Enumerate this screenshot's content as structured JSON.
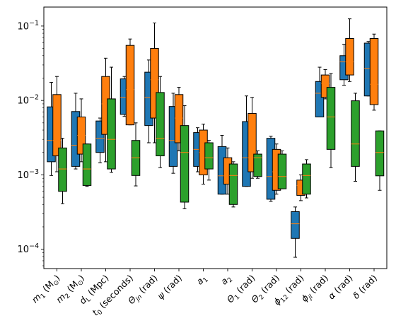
{
  "chart_data": {
    "type": "boxplot",
    "yscale": "log",
    "ylim": [
      5.5e-05,
      0.18
    ],
    "grid": false,
    "y_tick_labels": [
      {
        "value": 0.1,
        "base": "10",
        "exp": "−1"
      },
      {
        "value": 0.01,
        "base": "10",
        "exp": "−2"
      },
      {
        "value": 0.001,
        "base": "10",
        "exp": "−3"
      },
      {
        "value": 0.0001,
        "base": "10",
        "exp": "−4"
      }
    ],
    "categories": [
      {
        "sym": "m",
        "sub": "1",
        "unit": " (M",
        "unit_sub": "⊙",
        "unit_end": ")"
      },
      {
        "sym": "m",
        "sub": "2",
        "unit": " (M",
        "unit_sub": "⊙",
        "unit_end": ")"
      },
      {
        "sym": "d",
        "sub": "L",
        "unit": " (Mpc)",
        "unit_sub": "",
        "unit_end": ""
      },
      {
        "sym": "t",
        "sub": "0",
        "unit": " (seconds)",
        "unit_sub": "",
        "unit_end": ""
      },
      {
        "sym": "Θ",
        "sub": "jn",
        "unit": " (rad)",
        "unit_sub": "",
        "unit_end": ""
      },
      {
        "sym": "ψ",
        "sub": "",
        "unit": " (rad)",
        "unit_sub": "",
        "unit_end": ""
      },
      {
        "sym": "a",
        "sub": "1",
        "unit": "",
        "unit_sub": "",
        "unit_end": ""
      },
      {
        "sym": "a",
        "sub": "2",
        "unit": "",
        "unit_sub": "",
        "unit_end": ""
      },
      {
        "sym": "Θ",
        "sub": "1",
        "unit": " (rad)",
        "unit_sub": "",
        "unit_end": ""
      },
      {
        "sym": "Θ",
        "sub": "2",
        "unit": " (rad)",
        "unit_sub": "",
        "unit_end": ""
      },
      {
        "sym": "ϕ",
        "sub": "12",
        "unit": " (rad)",
        "unit_sub": "",
        "unit_end": ""
      },
      {
        "sym": "ϕ",
        "sub": "jl",
        "unit": " (rad)",
        "unit_sub": "",
        "unit_end": ""
      },
      {
        "sym": "α",
        "sub": "",
        "unit": " (rad)",
        "unit_sub": "",
        "unit_end": ""
      },
      {
        "sym": "δ",
        "sub": "",
        "unit": " (rad)",
        "unit_sub": "",
        "unit_end": ""
      }
    ],
    "series": [
      {
        "color": "#1f77b4",
        "boxes": [
          [
            0.00098,
            0.0015,
            0.0029,
            0.0082,
            0.0175
          ],
          [
            0.0012,
            0.0013,
            0.0025,
            0.0071,
            0.0125
          ],
          [
            0.00145,
            0.002,
            0.0031,
            0.0053,
            0.0058
          ],
          [
            0.0061,
            0.0065,
            0.011,
            0.0195,
            0.021
          ],
          [
            0.0027,
            0.0046,
            0.011,
            0.024,
            0.035
          ],
          [
            0.00105,
            0.0013,
            0.0029,
            0.0083,
            0.0125
          ],
          [
            0.0011,
            0.0013,
            0.0022,
            0.0037,
            0.0043
          ],
          [
            0.00055,
            0.00055,
            0.00097,
            0.0024,
            0.0034
          ],
          [
            0.0007,
            0.0007,
            0.0017,
            0.0052,
            0.0115
          ],
          [
            0.00044,
            0.00047,
            0.00095,
            0.0031,
            0.0033
          ],
          [
            7.8e-05,
            0.00014,
            0.00022,
            0.00032,
            0.00037
          ],
          [
            0.006,
            0.006,
            0.0125,
            0.018,
            0.028
          ],
          [
            0.016,
            0.019,
            0.033,
            0.04,
            0.057
          ],
          [
            0.0115,
            0.0115,
            0.027,
            0.059,
            0.062
          ]
        ]
      },
      {
        "color": "#ff7f0e",
        "boxes": [
          [
            0.0011,
            0.0018,
            0.0029,
            0.012,
            0.021
          ],
          [
            0.0015,
            0.0019,
            0.0034,
            0.006,
            0.0105
          ],
          [
            0.0015,
            0.0035,
            0.009,
            0.021,
            0.037
          ],
          [
            0.0047,
            0.0047,
            0.014,
            0.055,
            0.067
          ],
          [
            0.0027,
            0.0058,
            0.019,
            0.05,
            0.11
          ],
          [
            0.0021,
            0.0027,
            0.0058,
            0.012,
            0.015
          ],
          [
            0.00075,
            0.001,
            0.002,
            0.004,
            0.0048
          ],
          [
            0.00055,
            0.00075,
            0.00097,
            0.0017,
            0.0023
          ],
          [
            0.0009,
            0.0011,
            0.0017,
            0.0067,
            0.011
          ],
          [
            0.00055,
            0.00062,
            0.0011,
            0.0022,
            0.0026
          ],
          [
            0.00045,
            0.00053,
            0.00072,
            0.00085,
            0.001
          ],
          [
            0.0105,
            0.011,
            0.017,
            0.022,
            0.026
          ],
          [
            0.018,
            0.022,
            0.033,
            0.068,
            0.125
          ],
          [
            0.0074,
            0.0088,
            0.0165,
            0.068,
            0.078
          ]
        ]
      },
      {
        "color": "#2ca02c",
        "boxes": [
          [
            0.00041,
            0.0006,
            0.0012,
            0.0023,
            0.0031
          ],
          [
            0.0007,
            0.00072,
            0.0012,
            0.0026,
            0.0026
          ],
          [
            0.00108,
            0.0012,
            0.003,
            0.0105,
            0.028
          ],
          [
            0.00071,
            0.00098,
            0.0017,
            0.0029,
            0.005
          ],
          [
            0.00125,
            0.0018,
            0.0031,
            0.0128,
            0.021
          ],
          [
            0.00035,
            0.00043,
            0.002,
            0.0046,
            0.0085
          ],
          [
            0.00085,
            0.0012,
            0.0017,
            0.0027,
            0.0029
          ],
          [
            0.00037,
            0.0004,
            0.00098,
            0.0014,
            0.0015
          ],
          [
            0.0009,
            0.00095,
            0.0017,
            0.0019,
            0.0021
          ],
          [
            0.00065,
            0.00065,
            0.00095,
            0.0019,
            0.0021
          ],
          [
            0.00049,
            0.00055,
            0.00098,
            0.0014,
            0.0016
          ],
          [
            0.00125,
            0.0022,
            0.006,
            0.015,
            0.023
          ],
          [
            0.00082,
            0.0013,
            0.0026,
            0.0099,
            0.0125
          ],
          [
            0.00062,
            0.00097,
            0.002,
            0.0039,
            0.0039
          ]
        ]
      }
    ],
    "median_color": "#ff7f0e"
  }
}
